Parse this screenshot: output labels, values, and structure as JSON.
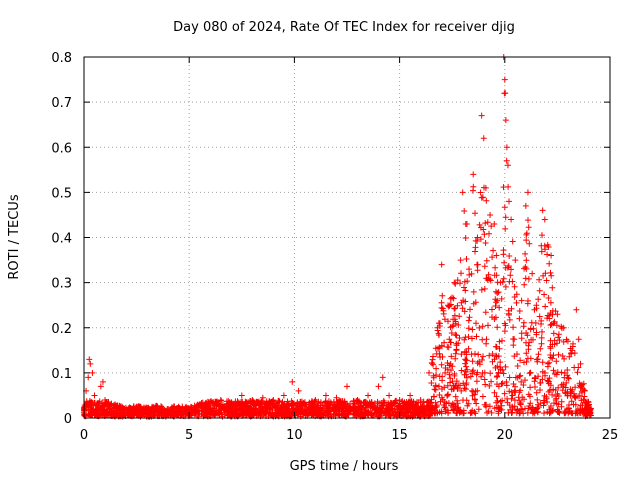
{
  "chart_data": {
    "type": "scatter",
    "title": "Day 080 of 2024, Rate Of TEC Index for receiver djig",
    "xlabel": "GPS time / hours",
    "ylabel": "ROTI / TECUs",
    "xlim": [
      0,
      25
    ],
    "ylim": [
      0,
      0.8
    ],
    "xticks": [
      0,
      5,
      10,
      15,
      20,
      25
    ],
    "xtick_labels": [
      "0",
      "5",
      "10",
      "15",
      "20",
      "25"
    ],
    "yticks": [
      0,
      0.1,
      0.2,
      0.3,
      0.4,
      0.5,
      0.6,
      0.7,
      0.8
    ],
    "ytick_labels": [
      "0",
      "0.1",
      "0.2",
      "0.3",
      "0.4",
      "0.5",
      "0.6",
      "0.7",
      "0.8"
    ],
    "grid": true,
    "marker": "+",
    "marker_color": "#ff0000",
    "series": [
      {
        "name": "ROTI",
        "points": [
          [
            0.0,
            0.02
          ],
          [
            0.1,
            0.06
          ],
          [
            0.2,
            0.09
          ],
          [
            0.25,
            0.13
          ],
          [
            0.3,
            0.12
          ],
          [
            0.4,
            0.1
          ],
          [
            0.5,
            0.05
          ],
          [
            0.6,
            0.03
          ],
          [
            0.8,
            0.07
          ],
          [
            0.9,
            0.08
          ],
          [
            1.0,
            0.04
          ],
          [
            1.3,
            0.03
          ],
          [
            1.6,
            0.025
          ],
          [
            2.0,
            0.02
          ],
          [
            2.5,
            0.025
          ],
          [
            3.0,
            0.02
          ],
          [
            3.5,
            0.025
          ],
          [
            4.0,
            0.02
          ],
          [
            4.5,
            0.025
          ],
          [
            5.0,
            0.02
          ],
          [
            5.5,
            0.03
          ],
          [
            6.0,
            0.035
          ],
          [
            6.5,
            0.04
          ],
          [
            7.0,
            0.035
          ],
          [
            7.5,
            0.05
          ],
          [
            8.0,
            0.04
          ],
          [
            8.5,
            0.045
          ],
          [
            9.0,
            0.04
          ],
          [
            9.5,
            0.05
          ],
          [
            9.9,
            0.08
          ],
          [
            10.2,
            0.06
          ],
          [
            10.5,
            0.035
          ],
          [
            11.0,
            0.04
          ],
          [
            11.5,
            0.05
          ],
          [
            12.0,
            0.045
          ],
          [
            12.5,
            0.07
          ],
          [
            13.0,
            0.04
          ],
          [
            13.5,
            0.05
          ],
          [
            14.0,
            0.07
          ],
          [
            14.2,
            0.09
          ],
          [
            14.5,
            0.05
          ],
          [
            15.0,
            0.04
          ],
          [
            15.5,
            0.05
          ],
          [
            16.0,
            0.04
          ],
          [
            16.4,
            0.1
          ],
          [
            16.8,
            0.2
          ],
          [
            17.0,
            0.34
          ],
          [
            17.3,
            0.25
          ],
          [
            17.6,
            0.3
          ],
          [
            17.9,
            0.35
          ],
          [
            18.0,
            0.5
          ],
          [
            18.2,
            0.43
          ],
          [
            18.3,
            0.33
          ],
          [
            18.5,
            0.54
          ],
          [
            18.7,
            0.4
          ],
          [
            18.9,
            0.67
          ],
          [
            19.0,
            0.62
          ],
          [
            19.1,
            0.51
          ],
          [
            19.3,
            0.45
          ],
          [
            19.5,
            0.43
          ],
          [
            19.6,
            0.36
          ],
          [
            19.8,
            0.3
          ],
          [
            19.95,
            0.8
          ],
          [
            20.0,
            0.75
          ],
          [
            20.02,
            0.72
          ],
          [
            20.05,
            0.66
          ],
          [
            20.1,
            0.6
          ],
          [
            20.15,
            0.56
          ],
          [
            20.2,
            0.48
          ],
          [
            20.3,
            0.44
          ],
          [
            20.5,
            0.35
          ],
          [
            20.8,
            0.26
          ],
          [
            21.0,
            0.47
          ],
          [
            21.1,
            0.5
          ],
          [
            21.3,
            0.32
          ],
          [
            21.5,
            0.25
          ],
          [
            21.8,
            0.46
          ],
          [
            21.9,
            0.44
          ],
          [
            22.2,
            0.36
          ],
          [
            22.5,
            0.23
          ],
          [
            22.8,
            0.2
          ],
          [
            23.0,
            0.17
          ],
          [
            23.2,
            0.15
          ],
          [
            23.4,
            0.24
          ],
          [
            23.6,
            0.12
          ],
          [
            23.8,
            0.06
          ],
          [
            24.0,
            0.03
          ]
        ]
      }
    ]
  }
}
